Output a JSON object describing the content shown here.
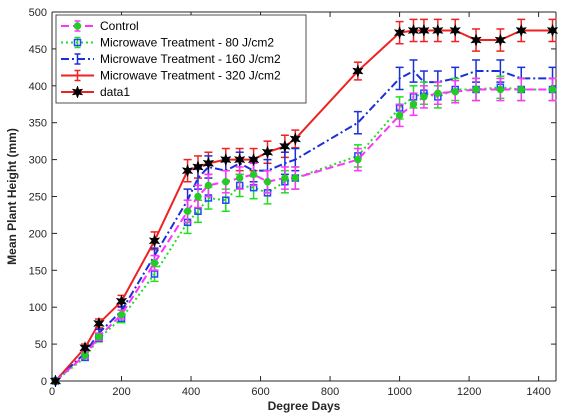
{
  "chart_data": {
    "type": "line",
    "xlabel": "Degree Days",
    "ylabel": "Mean Plant Height (mm)",
    "xlim": [
      0,
      1450
    ],
    "ylim": [
      0,
      500
    ],
    "xticks": [
      0,
      200,
      400,
      600,
      800,
      1000,
      1200,
      1400
    ],
    "yticks": [
      0,
      50,
      100,
      150,
      200,
      250,
      300,
      350,
      400,
      450,
      500
    ],
    "grid": false,
    "legend_position": "top-left",
    "series": [
      {
        "name": "Control",
        "color": "#ff33ff",
        "line_style": "dash",
        "marker": "circle",
        "marker_color": "#22cc22",
        "x": [
          10,
          95,
          135,
          200,
          295,
          390,
          420,
          450,
          500,
          540,
          580,
          620,
          670,
          700,
          880,
          1000,
          1040,
          1070,
          1110,
          1160,
          1220,
          1290,
          1350,
          1440
        ],
        "y": [
          0,
          35,
          60,
          90,
          160,
          230,
          250,
          265,
          270,
          275,
          280,
          270,
          275,
          275,
          300,
          360,
          375,
          385,
          390,
          392,
          395,
          395,
          395,
          395
        ],
        "err": [
          0,
          4,
          5,
          6,
          10,
          15,
          15,
          15,
          15,
          15,
          15,
          15,
          15,
          15,
          15,
          15,
          15,
          15,
          15,
          15,
          15,
          15,
          15,
          15
        ]
      },
      {
        "name": "Microwave Treatment - 80 J/cm2",
        "color": "#22dd22",
        "line_style": "dot",
        "marker": "square",
        "marker_color": "#2244ff",
        "x": [
          10,
          95,
          135,
          200,
          295,
          390,
          420,
          450,
          500,
          540,
          580,
          620,
          670,
          700,
          880,
          1000,
          1040,
          1070,
          1110,
          1160,
          1220,
          1290,
          1350,
          1440
        ],
        "y": [
          0,
          32,
          58,
          85,
          145,
          215,
          230,
          248,
          245,
          265,
          262,
          255,
          270,
          275,
          305,
          370,
          385,
          390,
          385,
          395,
          395,
          398,
          395,
          395
        ],
        "err": [
          0,
          4,
          5,
          6,
          10,
          15,
          15,
          15,
          15,
          15,
          15,
          15,
          15,
          15,
          15,
          15,
          15,
          15,
          15,
          15,
          15,
          15,
          15,
          15
        ]
      },
      {
        "name": "Microwave Treatment - 160 J/cm2",
        "color": "#1a2fd9",
        "line_style": "dashdot",
        "marker": "none",
        "marker_color": "#1a2fd9",
        "x": [
          10,
          95,
          135,
          200,
          295,
          390,
          420,
          450,
          500,
          540,
          580,
          620,
          670,
          700,
          880,
          1000,
          1040,
          1070,
          1110,
          1160,
          1220,
          1290,
          1350,
          1440
        ],
        "y": [
          0,
          38,
          65,
          95,
          170,
          245,
          275,
          290,
          285,
          295,
          285,
          285,
          295,
          300,
          350,
          410,
          420,
          405,
          405,
          410,
          420,
          420,
          410,
          410
        ],
        "err": [
          0,
          4,
          5,
          6,
          10,
          15,
          15,
          15,
          15,
          15,
          15,
          15,
          15,
          15,
          15,
          15,
          15,
          15,
          15,
          15,
          15,
          15,
          15,
          15
        ]
      },
      {
        "name": "Microwave Treatment - 320 J/cm2",
        "color": "#ee2222",
        "line_style": "solid",
        "marker": "none",
        "marker_color": "#ee2222",
        "x": [
          10,
          95,
          135,
          200,
          295,
          390,
          420,
          450,
          500,
          540,
          580,
          620,
          670,
          700,
          880,
          1000,
          1040,
          1070,
          1110,
          1160,
          1220,
          1290,
          1350,
          1440
        ],
        "y": [
          0,
          45,
          78,
          108,
          190,
          285,
          290,
          295,
          300,
          300,
          300,
          310,
          318,
          328,
          420,
          472,
          475,
          475,
          475,
          475,
          462,
          462,
          475,
          475
        ],
        "err": [
          0,
          5,
          6,
          8,
          12,
          15,
          15,
          15,
          15,
          15,
          15,
          15,
          15,
          12,
          12,
          15,
          15,
          15,
          15,
          15,
          15,
          15,
          15,
          15
        ]
      },
      {
        "name": "data1",
        "color": "#000000",
        "line_style": "none",
        "marker": "hexagram",
        "marker_color": "#000000",
        "x": [
          10,
          95,
          135,
          200,
          295,
          390,
          420,
          450,
          500,
          540,
          580,
          620,
          670,
          700,
          880,
          1000,
          1040,
          1070,
          1110,
          1160,
          1220,
          1290,
          1350,
          1440
        ],
        "y": [
          0,
          45,
          78,
          108,
          190,
          285,
          290,
          295,
          300,
          300,
          300,
          310,
          318,
          328,
          420,
          472,
          475,
          475,
          475,
          475,
          462,
          462,
          475,
          475
        ],
        "err": []
      }
    ]
  }
}
